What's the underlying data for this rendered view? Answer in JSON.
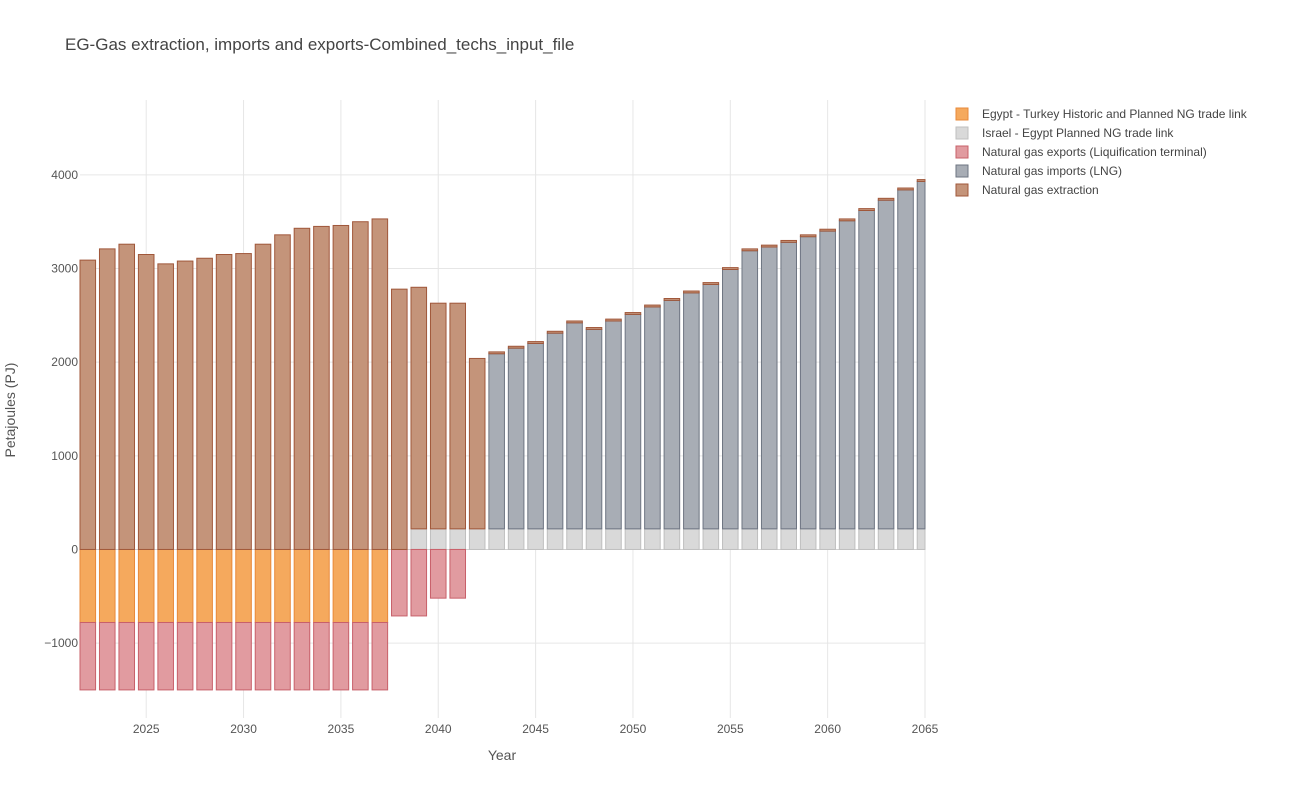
{
  "chart_data": {
    "type": "bar",
    "barmode": "relative",
    "title": "EG-Gas extraction, imports and exports-Combined_techs_input_file",
    "xlabel": "Year",
    "ylabel": "Petajoules (PJ)",
    "xlim": [
      2021.6,
      2065
    ],
    "ylim": [
      -1800,
      4800
    ],
    "x_ticks": [
      2025,
      2030,
      2035,
      2040,
      2045,
      2050,
      2055,
      2060,
      2065
    ],
    "y_ticks": [
      -1000,
      0,
      1000,
      2000,
      3000,
      4000
    ],
    "y_tick_labels": [
      "−1000",
      "0",
      "1000",
      "2000",
      "3000",
      "4000"
    ],
    "grid": true,
    "legend_position": "top-right",
    "x": [
      2022,
      2023,
      2024,
      2025,
      2026,
      2027,
      2028,
      2029,
      2030,
      2031,
      2032,
      2033,
      2034,
      2035,
      2036,
      2037,
      2038,
      2039,
      2040,
      2041,
      2042,
      2043,
      2044,
      2045,
      2046,
      2047,
      2048,
      2049,
      2050,
      2051,
      2052,
      2053,
      2054,
      2055,
      2056,
      2057,
      2058,
      2059,
      2060,
      2061,
      2062,
      2063,
      2064,
      2065
    ],
    "series": [
      {
        "name": "Egypt - Turkey Historic and Planned NG trade link",
        "color": "#F5A95D",
        "stroke": "#E8893A",
        "values": [
          -780,
          -780,
          -780,
          -780,
          -780,
          -780,
          -780,
          -780,
          -780,
          -780,
          -780,
          -780,
          -780,
          -780,
          -780,
          -780,
          0,
          0,
          0,
          0,
          0,
          0,
          0,
          0,
          0,
          0,
          0,
          0,
          0,
          0,
          0,
          0,
          0,
          0,
          0,
          0,
          0,
          0,
          0,
          0,
          0,
          0,
          0,
          0
        ]
      },
      {
        "name": "Israel - Egypt Planned NG trade link",
        "color": "#D9D9D9",
        "stroke": "#BFBFBF",
        "values": [
          0,
          0,
          0,
          0,
          0,
          0,
          0,
          0,
          0,
          0,
          0,
          0,
          0,
          0,
          0,
          0,
          0,
          220,
          220,
          220,
          220,
          220,
          220,
          220,
          220,
          220,
          220,
          220,
          220,
          220,
          220,
          220,
          220,
          220,
          220,
          220,
          220,
          220,
          220,
          220,
          220,
          220,
          220,
          220
        ]
      },
      {
        "name": "Natural gas exports (Liquification terminal)",
        "color": "#E19BA0",
        "stroke": "#C8606A",
        "values": [
          -720,
          -720,
          -720,
          -720,
          -720,
          -720,
          -720,
          -720,
          -720,
          -720,
          -720,
          -720,
          -720,
          -720,
          -720,
          -720,
          -710,
          -710,
          -520,
          -520,
          0,
          0,
          0,
          0,
          0,
          0,
          0,
          0,
          0,
          0,
          0,
          0,
          0,
          0,
          0,
          0,
          0,
          0,
          0,
          0,
          0,
          0,
          0,
          0
        ]
      },
      {
        "name": "Natural gas imports (LNG)",
        "color": "#A8ADB5",
        "stroke": "#6E7582",
        "values": [
          0,
          0,
          0,
          0,
          0,
          0,
          0,
          0,
          0,
          0,
          0,
          0,
          0,
          0,
          0,
          0,
          0,
          0,
          0,
          0,
          0,
          1870,
          1930,
          1980,
          2090,
          2200,
          2130,
          2220,
          2290,
          2370,
          2440,
          2520,
          2610,
          2770,
          2970,
          3010,
          3060,
          3120,
          3180,
          3290,
          3400,
          3510,
          3620,
          3710
        ]
      },
      {
        "name": "Natural gas extraction",
        "color": "#C4947A",
        "stroke": "#A0573A",
        "values": [
          3090,
          3210,
          3260,
          3150,
          3050,
          3080,
          3110,
          3150,
          3160,
          3260,
          3360,
          3430,
          3450,
          3460,
          3500,
          3530,
          2780,
          2580,
          2410,
          2410,
          1820,
          20,
          20,
          20,
          20,
          20,
          20,
          20,
          20,
          20,
          20,
          20,
          20,
          20,
          20,
          20,
          20,
          20,
          20,
          20,
          20,
          20,
          20,
          20
        ]
      }
    ]
  }
}
